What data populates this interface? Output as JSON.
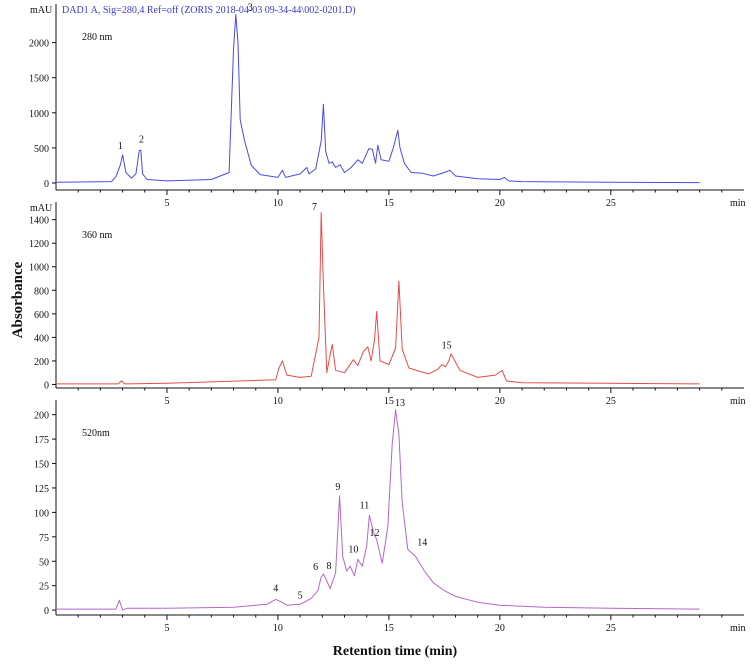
{
  "figure": {
    "ylabel": "Absorbance",
    "xlabel": "Retention time (min)"
  },
  "chart_data": [
    {
      "type": "line",
      "header": "DAD1 A, Sig=280,4 Ref=off (ZORIS 2018-04-03 09-34-44\\002-0201.D)",
      "wavelength_label": "280 nm",
      "y_unit": "mAU",
      "x_unit": "min",
      "color": "#4a4ae6",
      "xlim": [
        0,
        31
      ],
      "ylim": [
        -100,
        2550
      ],
      "xticks": [
        5,
        10,
        15,
        20,
        25
      ],
      "yticks": [
        0,
        500,
        1000,
        1500,
        2000
      ],
      "x": [
        0,
        2.5,
        2.7,
        2.9,
        3.0,
        3.15,
        3.4,
        3.6,
        3.75,
        3.82,
        3.9,
        4.1,
        5,
        7,
        7.8,
        8.0,
        8.1,
        8.2,
        8.3,
        8.5,
        8.8,
        9.2,
        10,
        10.2,
        10.35,
        10.6,
        11,
        11.3,
        11.4,
        11.7,
        11.95,
        12.05,
        12.15,
        12.3,
        12.45,
        12.6,
        12.8,
        13.0,
        13.3,
        13.6,
        13.8,
        14.1,
        14.25,
        14.4,
        14.5,
        14.65,
        15.0,
        15.2,
        15.4,
        15.5,
        15.7,
        16.0,
        16.5,
        17.0,
        17.5,
        17.75,
        18.0,
        19,
        20,
        20.2,
        20.4,
        21,
        25,
        29
      ],
      "y": [
        10,
        20,
        90,
        260,
        400,
        150,
        70,
        130,
        460,
        470,
        130,
        50,
        30,
        50,
        150,
        1900,
        2400,
        2000,
        900,
        600,
        250,
        120,
        80,
        180,
        80,
        100,
        130,
        220,
        130,
        200,
        600,
        1120,
        450,
        280,
        300,
        220,
        260,
        150,
        220,
        330,
        280,
        490,
        480,
        280,
        540,
        330,
        310,
        500,
        750,
        500,
        280,
        150,
        140,
        100,
        150,
        180,
        100,
        60,
        50,
        80,
        30,
        20,
        10,
        5
      ]
    },
    {
      "type": "line",
      "wavelength_label": "360 nm",
      "y_unit": "mAU",
      "x_unit": "min",
      "color": "#e84a4a",
      "xlim": [
        0,
        31
      ],
      "ylim": [
        -30,
        1550
      ],
      "xticks": [
        5,
        10,
        15,
        20,
        25
      ],
      "yticks": [
        0,
        200,
        400,
        600,
        800,
        1000,
        1200,
        1400
      ],
      "x": [
        0,
        2.8,
        2.95,
        3.1,
        5,
        9.9,
        10.05,
        10.2,
        10.4,
        11,
        11.5,
        11.85,
        11.95,
        12.05,
        12.2,
        12.35,
        12.45,
        12.6,
        13.0,
        13.4,
        13.6,
        13.85,
        14.05,
        14.2,
        14.35,
        14.45,
        14.6,
        15.0,
        15.3,
        15.45,
        15.6,
        15.9,
        16.4,
        16.8,
        17.2,
        17.4,
        17.55,
        17.7,
        17.8,
        18.2,
        19.0,
        19.8,
        20.1,
        20.3,
        21,
        25,
        29
      ],
      "y": [
        5,
        5,
        30,
        5,
        10,
        40,
        140,
        200,
        80,
        60,
        70,
        400,
        1460,
        850,
        100,
        250,
        340,
        120,
        100,
        210,
        160,
        280,
        320,
        200,
        380,
        620,
        200,
        170,
        310,
        880,
        300,
        140,
        110,
        90,
        130,
        170,
        150,
        200,
        260,
        120,
        60,
        80,
        120,
        30,
        15,
        10,
        5
      ]
    },
    {
      "type": "line",
      "wavelength_label": "520nm",
      "y_unit": "",
      "x_unit": "min",
      "color": "#b366cc",
      "xlim": [
        0,
        31
      ],
      "ylim": [
        -5,
        215
      ],
      "xticks": [
        5,
        10,
        15,
        20,
        25
      ],
      "yticks": [
        0,
        25,
        50,
        75,
        100,
        125,
        150,
        175,
        200
      ],
      "x": [
        0,
        2.7,
        2.85,
        3.0,
        3.2,
        5,
        8,
        9.5,
        9.9,
        10.1,
        10.4,
        11.0,
        11.5,
        11.8,
        11.95,
        12.05,
        12.2,
        12.35,
        12.6,
        12.78,
        12.92,
        13.1,
        13.25,
        13.45,
        13.6,
        13.8,
        14.0,
        14.12,
        14.3,
        14.45,
        14.7,
        14.95,
        15.15,
        15.3,
        15.45,
        15.6,
        15.85,
        16.2,
        16.6,
        17.0,
        17.5,
        18,
        19,
        20,
        22,
        25,
        29
      ],
      "y": [
        1,
        1,
        10,
        0,
        2,
        2,
        3,
        6,
        11,
        9,
        5,
        6,
        12,
        20,
        34,
        37,
        30,
        22,
        38,
        117,
        55,
        40,
        45,
        35,
        52,
        45,
        66,
        97,
        80,
        72,
        48,
        85,
        170,
        205,
        180,
        110,
        62,
        55,
        40,
        28,
        20,
        14,
        8,
        5,
        3,
        2,
        1
      ]
    }
  ],
  "peak_labels": [
    {
      "text": "1",
      "x": 2.9,
      "y": 430,
      "panel": 0
    },
    {
      "text": "2",
      "x": 3.85,
      "y": 520,
      "panel": 0
    },
    {
      "text": "3",
      "x": 8.75,
      "y": 2400,
      "panel": 0
    },
    {
      "text": "7",
      "x": 11.65,
      "y": 1450,
      "panel": 1
    },
    {
      "text": "15",
      "x": 17.6,
      "y": 270,
      "panel": 1
    },
    {
      "text": "4",
      "x": 9.9,
      "y": 15,
      "panel": 2
    },
    {
      "text": "5",
      "x": 11.0,
      "y": 8,
      "panel": 2
    },
    {
      "text": "6",
      "x": 11.7,
      "y": 37,
      "panel": 2
    },
    {
      "text": "8",
      "x": 12.3,
      "y": 38,
      "panel": 2
    },
    {
      "text": "9",
      "x": 12.7,
      "y": 119,
      "panel": 2
    },
    {
      "text": "10",
      "x": 13.4,
      "y": 55,
      "panel": 2
    },
    {
      "text": "11",
      "x": 13.9,
      "y": 100,
      "panel": 2
    },
    {
      "text": "12",
      "x": 14.35,
      "y": 72,
      "panel": 2
    },
    {
      "text": "13",
      "x": 15.5,
      "y": 205,
      "panel": 2
    },
    {
      "text": "14",
      "x": 16.5,
      "y": 62,
      "panel": 2
    }
  ]
}
